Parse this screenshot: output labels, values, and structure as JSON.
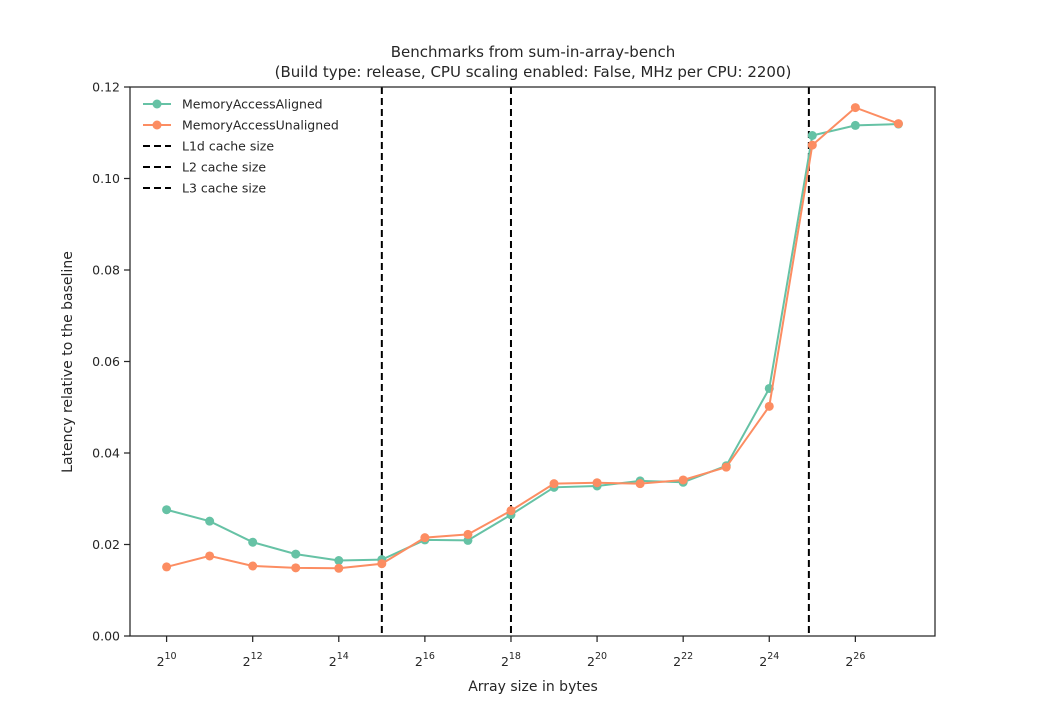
{
  "chart_data": {
    "type": "line",
    "title": "Benchmarks from sum-in-array-bench",
    "subtitle": "(Build type: release, CPU scaling enabled: False, MHz per CPU: 2200)",
    "xlabel": "Array size in bytes",
    "ylabel": "Latency relative to the baseline",
    "x_scale": "log2",
    "x_exponents": [
      10,
      11,
      12,
      13,
      14,
      15,
      16,
      17,
      18,
      19,
      20,
      21,
      22,
      23,
      24,
      25,
      26,
      27
    ],
    "xlim_exponent": [
      9.15,
      27.85
    ],
    "x_tick_exponents": [
      10,
      12,
      14,
      16,
      18,
      20,
      22,
      24,
      26
    ],
    "x_tick_base": "2",
    "ylim": [
      0.0,
      0.12
    ],
    "y_ticks": [
      "0.00",
      "0.02",
      "0.04",
      "0.06",
      "0.08",
      "0.10",
      "0.12"
    ],
    "grid": false,
    "legend_position": "upper-left",
    "series": [
      {
        "name": "MemoryAccessAligned",
        "color": "#66c2a5",
        "values": [
          0.0276,
          0.0251,
          0.0205,
          0.0179,
          0.0165,
          0.0167,
          0.021,
          0.0209,
          0.0265,
          0.0325,
          0.0328,
          0.0339,
          0.0336,
          0.0372,
          0.0541,
          0.1094,
          0.1116,
          0.1119
        ]
      },
      {
        "name": "MemoryAccessUnaligned",
        "color": "#fc8d62",
        "values": [
          0.0151,
          0.0175,
          0.0153,
          0.0149,
          0.0148,
          0.0158,
          0.0215,
          0.0222,
          0.0274,
          0.0333,
          0.0335,
          0.0333,
          0.0341,
          0.0369,
          0.0502,
          0.1073,
          0.1155,
          0.112
        ]
      }
    ],
    "reference_lines": [
      {
        "name": "L1d cache size",
        "x_exponent": 15,
        "color": "#000000",
        "style": "dashed"
      },
      {
        "name": "L2 cache size",
        "x_exponent": 18,
        "color": "#000000",
        "style": "dashed"
      },
      {
        "name": "L3 cache size",
        "x_exponent": 24.92,
        "color": "#000000",
        "style": "dashed"
      }
    ]
  }
}
